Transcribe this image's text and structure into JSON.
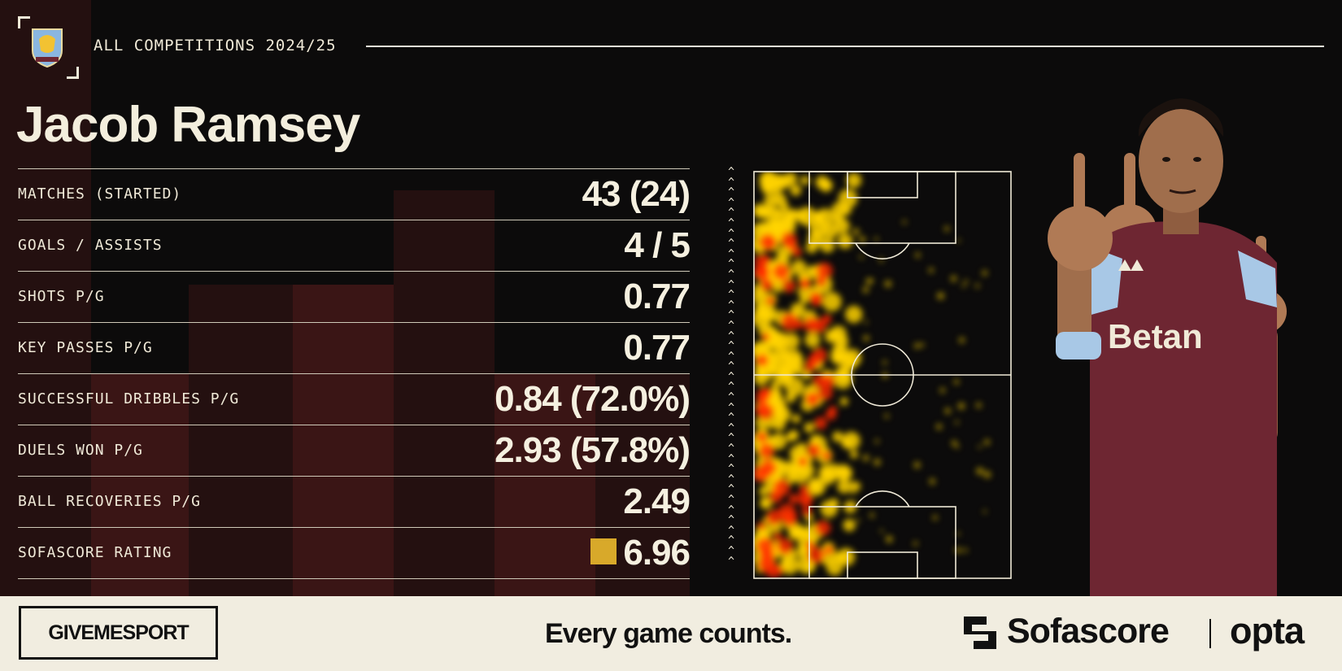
{
  "header": {
    "competition": "ALL COMPETITIONS 2024/25",
    "player_name": "Jacob Ramsey",
    "club_crest": "aston-villa-crest"
  },
  "stats": [
    {
      "label": "MATCHES (STARTED)",
      "value": "43 (24)"
    },
    {
      "label": "GOALS / ASSISTS",
      "value": "4 / 5"
    },
    {
      "label": "SHOTS P/G",
      "value": "0.77"
    },
    {
      "label": "KEY PASSES P/G",
      "value": "0.77"
    },
    {
      "label": "SUCCESSFUL DRIBBLES P/G",
      "value": "0.84 (72.0%)"
    },
    {
      "label": "DUELS WON P/G",
      "value": "2.93 (57.8%)"
    },
    {
      "label": "BALL RECOVERIES P/G",
      "value": "2.49"
    },
    {
      "label": "SOFASCORE RATING",
      "value": "6.96",
      "badge_color": "#d8a92a"
    }
  ],
  "heatmap": {
    "direction": "attacking-up",
    "hot_color": "#ff2a00",
    "warm_color": "#ffd400"
  },
  "footer": {
    "publisher": "GIVEMESPORT",
    "tagline": "Every game counts.",
    "sponsor": "Sofascore",
    "data_partner": "opta"
  },
  "colors": {
    "background": "#0c0b0b",
    "accent_maroon": "#3a1515",
    "text": "#f0ead8",
    "footer_bg": "#f1ede0",
    "kit_claret": "#6e2632",
    "kit_sky_blue": "#a8c8e6"
  }
}
